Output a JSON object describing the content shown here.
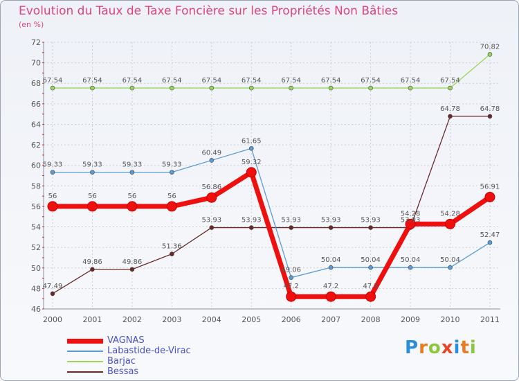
{
  "chart_data": {
    "type": "line",
    "title": "Evolution du Taux de Taxe Foncière sur les Propriétés Non Bâties",
    "subtitle": "(en %)",
    "xlabel": "",
    "ylabel": "(en %)",
    "ylim": [
      46,
      72
    ],
    "categories": [
      "2000",
      "2001",
      "2002",
      "2003",
      "2004",
      "2005",
      "2006",
      "2007",
      "2008",
      "2009",
      "2010",
      "2011"
    ],
    "y_ticks": [
      46,
      48,
      50,
      52,
      54,
      56,
      58,
      60,
      62,
      64,
      66,
      68,
      70,
      72
    ],
    "series": [
      {
        "name": "Barjac",
        "color": "#9ad65a",
        "values": [
          67.54,
          67.54,
          67.54,
          67.54,
          67.54,
          67.54,
          67.54,
          67.54,
          67.54,
          67.54,
          67.54,
          70.82
        ],
        "labels": [
          "67.54",
          "67.54",
          "67.54",
          "67.54",
          "67.54",
          "67.54",
          "67.54",
          "67.54",
          "67.54",
          "67.54",
          "67.54",
          "70.82"
        ]
      },
      {
        "name": "Bessas",
        "color": "#6a2828",
        "values": [
          47.49,
          49.86,
          49.86,
          51.36,
          53.93,
          53.93,
          53.93,
          53.93,
          53.93,
          53.93,
          64.78,
          64.78
        ],
        "labels": [
          "47.49",
          "49.86",
          "49.86",
          "51.36",
          "53.93",
          "53.93",
          "53.93",
          "53.93",
          "53.93",
          "53.93",
          "64.78",
          "64.78"
        ]
      },
      {
        "name": "Labastide-de-Virac",
        "color": "#5b9bd5",
        "values": [
          59.33,
          59.33,
          59.33,
          59.33,
          60.49,
          61.65,
          49.06,
          50.04,
          50.04,
          50.04,
          50.04,
          52.47
        ],
        "labels": [
          "59.33",
          "59.33",
          "59.33",
          "59.33",
          "60.49",
          "61.65",
          "49.06",
          "50.04",
          "50.04",
          "50.04",
          "50.04",
          "52.47"
        ]
      },
      {
        "name": "VAGNAS",
        "color": "#ee0f0f",
        "values": [
          56,
          56,
          56,
          56,
          56.86,
          59.32,
          47.2,
          47.2,
          47.2,
          54.28,
          54.28,
          56.91
        ],
        "labels": [
          "56",
          "56",
          "56",
          "56",
          "56.86",
          "59.32",
          "47.2",
          "47.2",
          "47.2",
          "54.28",
          "54.28",
          "56.91"
        ]
      }
    ],
    "legend": [
      {
        "name": "VAGNAS",
        "color": "#ee0f0f"
      },
      {
        "name": "Labastide-de-Virac",
        "color": "#5b9bd5"
      },
      {
        "name": "Barjac",
        "color": "#9ad65a"
      },
      {
        "name": "Bessas",
        "color": "#6a2828"
      }
    ],
    "legend_placement": "bottom-left",
    "grid": true
  },
  "brand": {
    "letters": [
      "P",
      "r",
      "o",
      "x",
      "i",
      "t",
      "i"
    ],
    "letter_colors": [
      "#2a8fd8",
      "#e87c1e",
      "#8cc63f",
      "#e8452b",
      "#2a8fd8",
      "#e87c1e",
      "#8cc63f"
    ]
  }
}
